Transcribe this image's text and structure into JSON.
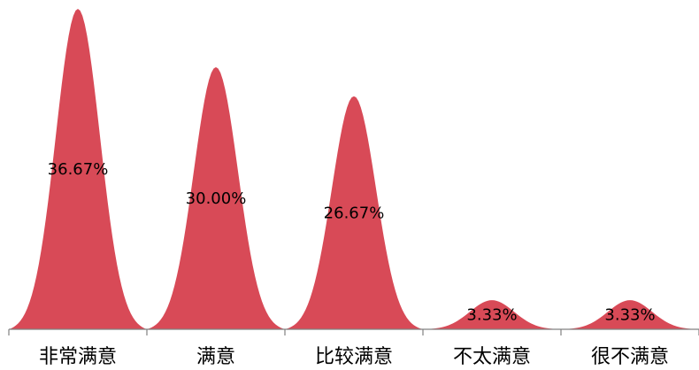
{
  "chart_data": {
    "type": "area",
    "shape": "peaked-bell",
    "categories": [
      "非常满意",
      "满意",
      "比较满意",
      "不太满意",
      "很不满意"
    ],
    "values": [
      36.67,
      30.0,
      26.67,
      3.33,
      3.33
    ],
    "data_labels": [
      "36.67%",
      "30.00%",
      "26.67%",
      "3.33%",
      "3.33%"
    ],
    "title": "",
    "xlabel": "",
    "ylabel": "",
    "ylim": [
      0,
      36.67
    ],
    "grid": false,
    "legend": "none",
    "fill_color": "#d84a57",
    "axis_color": "#808080"
  }
}
